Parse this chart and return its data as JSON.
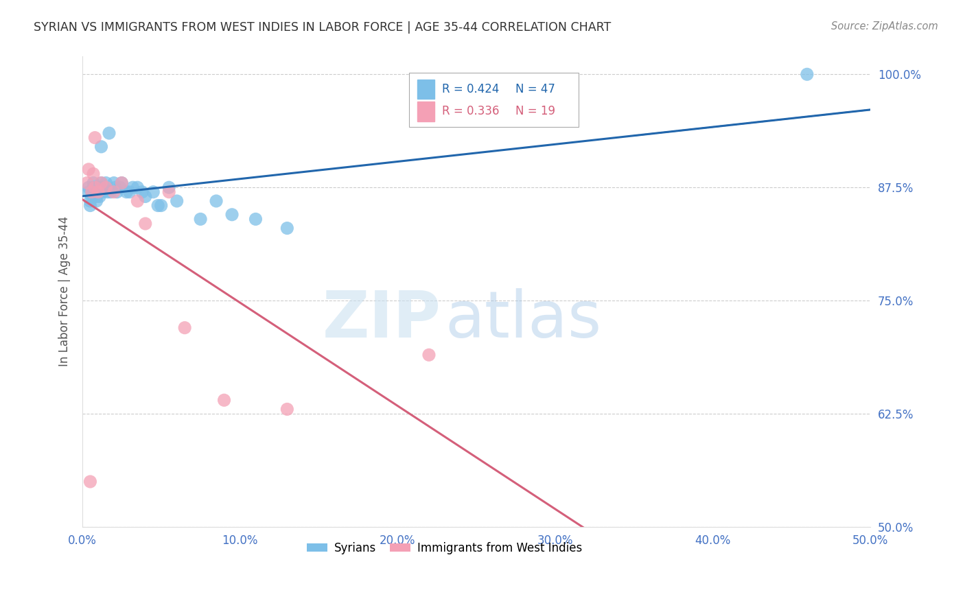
{
  "title": "SYRIAN VS IMMIGRANTS FROM WEST INDIES IN LABOR FORCE | AGE 35-44 CORRELATION CHART",
  "source": "Source: ZipAtlas.com",
  "ylabel": "In Labor Force | Age 35-44",
  "xlim": [
    0.0,
    0.5
  ],
  "ylim": [
    0.5,
    1.02
  ],
  "xticks": [
    0.0,
    0.1,
    0.2,
    0.3,
    0.4,
    0.5
  ],
  "yticks": [
    0.5,
    0.625,
    0.75,
    0.875,
    1.0
  ],
  "ytick_labels": [
    "50.0%",
    "62.5%",
    "75.0%",
    "87.5%",
    "100.0%"
  ],
  "xtick_labels": [
    "0.0%",
    "10.0%",
    "20.0%",
    "30.0%",
    "40.0%",
    "50.0%"
  ],
  "blue_color": "#7dbfe8",
  "pink_color": "#f4a0b5",
  "blue_line_color": "#2166ac",
  "pink_line_color": "#d45f7a",
  "blue_R": 0.424,
  "blue_N": 47,
  "pink_R": 0.336,
  "pink_N": 19,
  "blue_x": [
    0.004,
    0.004,
    0.005,
    0.005,
    0.006,
    0.006,
    0.007,
    0.007,
    0.008,
    0.008,
    0.009,
    0.009,
    0.009,
    0.01,
    0.01,
    0.011,
    0.011,
    0.012,
    0.012,
    0.013,
    0.013,
    0.015,
    0.016,
    0.017,
    0.018,
    0.02,
    0.021,
    0.022,
    0.024,
    0.025,
    0.028,
    0.03,
    0.032,
    0.035,
    0.038,
    0.04,
    0.045,
    0.048,
    0.05,
    0.055,
    0.06,
    0.075,
    0.085,
    0.095,
    0.11,
    0.13,
    0.46
  ],
  "blue_y": [
    0.87,
    0.875,
    0.86,
    0.855,
    0.865,
    0.87,
    0.875,
    0.88,
    0.87,
    0.875,
    0.87,
    0.865,
    0.86,
    0.875,
    0.87,
    0.875,
    0.865,
    0.92,
    0.88,
    0.87,
    0.875,
    0.88,
    0.87,
    0.935,
    0.87,
    0.88,
    0.875,
    0.87,
    0.875,
    0.88,
    0.87,
    0.87,
    0.875,
    0.875,
    0.87,
    0.865,
    0.87,
    0.855,
    0.855,
    0.875,
    0.86,
    0.84,
    0.86,
    0.845,
    0.84,
    0.83,
    1.0
  ],
  "pink_x": [
    0.003,
    0.004,
    0.005,
    0.006,
    0.007,
    0.008,
    0.008,
    0.01,
    0.012,
    0.015,
    0.02,
    0.025,
    0.035,
    0.04,
    0.055,
    0.065,
    0.09,
    0.13,
    0.22
  ],
  "pink_y": [
    0.88,
    0.895,
    0.55,
    0.87,
    0.89,
    0.875,
    0.93,
    0.87,
    0.88,
    0.875,
    0.87,
    0.88,
    0.86,
    0.835,
    0.87,
    0.72,
    0.64,
    0.63,
    0.69
  ],
  "watermark_zip": "ZIP",
  "watermark_atlas": "atlas",
  "bg_color": "#ffffff",
  "grid_color": "#cccccc",
  "tick_color": "#4472c4",
  "title_color": "#333333",
  "ylabel_color": "#555555",
  "source_color": "#888888"
}
